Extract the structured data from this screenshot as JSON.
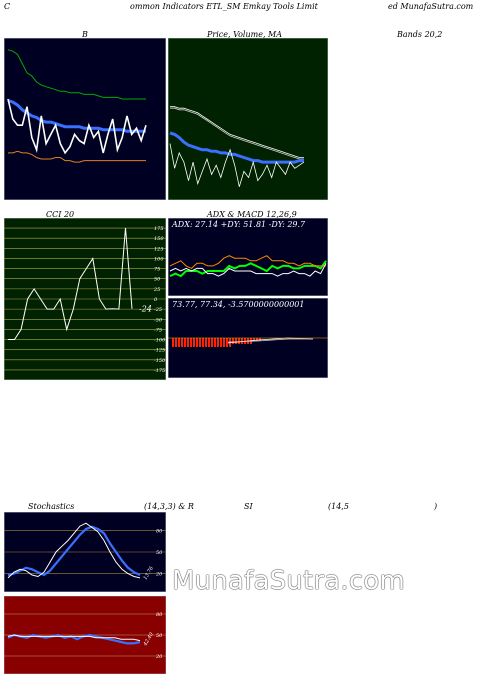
{
  "header": {
    "left": "C",
    "center": "ommon  Indicators ETL_SM Emkay Tools Limit",
    "right": "ed MunafaSutra.com"
  },
  "labels": {
    "b": "B",
    "price_ma": "Price,  Volume,  MA",
    "bands": "Bands 20,2",
    "cci": "CCI 20",
    "adx_macd": "ADX  & MACD 12,26,9",
    "stochastics": "Stochastics",
    "stoch_params": "(14,3,3) & R",
    "si": "SI",
    "rsi_params": "(14,5",
    "close_paren": ")"
  },
  "watermark": "MunafaSutra.com",
  "chart_data": [
    {
      "id": "bollinger",
      "type": "line",
      "series": [
        {
          "color": "#00aa00",
          "values": [
            95,
            94,
            92,
            86,
            80,
            78,
            74,
            72,
            71,
            70,
            69,
            68,
            68,
            67,
            67,
            67,
            66,
            66,
            66,
            65,
            64,
            64,
            64,
            64,
            63,
            63,
            63,
            63,
            63,
            63
          ]
        },
        {
          "color": "#3a70ff",
          "values": [
            62,
            61,
            59,
            56,
            54,
            52,
            51,
            49,
            48,
            48,
            47,
            46,
            45,
            45,
            45,
            45,
            44,
            44,
            44,
            44,
            43,
            43,
            43,
            43,
            43,
            42,
            42,
            42,
            42,
            42
          ]
        },
        {
          "color": "#ffffff",
          "values": [
            63,
            50,
            46,
            46,
            58,
            38,
            30,
            52,
            34,
            40,
            46,
            34,
            28,
            32,
            40,
            36,
            34,
            46,
            38,
            42,
            28,
            40,
            50,
            30,
            38,
            52,
            40,
            44,
            36,
            46
          ]
        },
        {
          "color": "#e08020",
          "values": [
            28,
            28,
            29,
            28,
            28,
            27,
            25,
            24,
            24,
            24,
            25,
            25,
            23,
            23,
            22,
            22,
            23,
            23,
            23,
            23,
            23,
            23,
            23,
            23,
            23,
            23,
            23,
            23,
            23,
            23
          ]
        }
      ]
    },
    {
      "id": "price_volume_ma",
      "type": "line",
      "series": [
        {
          "color": "#ffffff",
          "values": [
            58,
            58,
            57,
            57,
            56,
            55,
            54,
            52,
            50,
            48,
            46,
            44,
            42,
            40,
            39,
            38,
            37,
            36,
            35,
            34,
            33,
            32,
            31,
            30,
            29,
            28,
            27,
            26,
            25,
            25
          ]
        },
        {
          "color": "#cccccc",
          "values": [
            57,
            57,
            56,
            56,
            55,
            54,
            53,
            51,
            49,
            47,
            45,
            43,
            41,
            39,
            38,
            37,
            36,
            35,
            34,
            33,
            32,
            31,
            30,
            29,
            28,
            27,
            26,
            25,
            24,
            24
          ]
        },
        {
          "color": "#3a70ff",
          "values": [
            41,
            40,
            38,
            35,
            33,
            32,
            31,
            30,
            30,
            29,
            29,
            28,
            28,
            27,
            27,
            26,
            25,
            24,
            23,
            23,
            22,
            22,
            22,
            22,
            22,
            22,
            22,
            22,
            23,
            23
          ]
        },
        {
          "color": "#ffffff",
          "values": [
            34,
            18,
            28,
            22,
            10,
            22,
            8,
            16,
            24,
            14,
            20,
            12,
            22,
            30,
            20,
            6,
            16,
            12,
            22,
            10,
            14,
            20,
            12,
            22,
            18,
            14,
            22,
            18,
            20,
            22
          ]
        }
      ]
    },
    {
      "id": "cci",
      "type": "line",
      "axis_ticks": [
        175,
        150,
        125,
        100,
        75,
        50,
        25,
        0,
        -25,
        -50,
        -75,
        -100,
        -125,
        -150,
        -175
      ],
      "value_label": "-24",
      "series": [
        {
          "color": "#ffffff",
          "values": [
            -100,
            -100,
            -75,
            0,
            25,
            0,
            -25,
            -25,
            0,
            -75,
            -25,
            50,
            75,
            100,
            0,
            -25,
            -24,
            -25,
            175,
            -24
          ]
        }
      ]
    },
    {
      "id": "adx",
      "type": "line",
      "text": "ADX: 27.14  +DY: 51.81 -DY: 29.7",
      "series": [
        {
          "color": "#00ff00",
          "values": [
            25,
            26,
            25,
            27,
            27,
            27,
            26,
            27,
            27,
            27,
            27,
            29,
            28,
            29,
            29,
            30,
            29,
            28,
            27,
            29,
            28,
            29,
            29,
            28,
            28,
            29,
            29,
            29,
            28,
            31
          ]
        },
        {
          "color": "#ff8800",
          "values": [
            29,
            30,
            31,
            29,
            28,
            30,
            30,
            29,
            29,
            30,
            32,
            33,
            32,
            32,
            32,
            31,
            31,
            32,
            33,
            31,
            31,
            31,
            30,
            30,
            29,
            30,
            30,
            29,
            29,
            29
          ]
        },
        {
          "color": "#ffffff",
          "values": [
            27,
            28,
            27,
            28,
            27,
            28,
            28,
            26,
            26,
            25,
            26,
            28,
            27,
            27,
            27,
            27,
            26,
            26,
            26,
            26,
            25,
            26,
            26,
            27,
            26,
            26,
            25,
            27,
            26,
            30
          ]
        }
      ]
    },
    {
      "id": "macd",
      "type": "bar",
      "text": "73.77,  77.34,  -3.5700000000001",
      "values": [
        -3,
        -3,
        -3,
        -3,
        -3,
        -3,
        -3,
        -3,
        -3,
        -3,
        -3,
        -3,
        -3,
        -3,
        -3,
        -3,
        -3,
        -3,
        -3,
        -3,
        -2,
        -2,
        -2,
        -2,
        -2,
        -2,
        -2,
        -1,
        -1,
        -1
      ]
    },
    {
      "id": "stochastics",
      "type": "line",
      "axis_ticks": [
        80,
        50,
        20
      ],
      "value_label": "13.76",
      "series": [
        {
          "color": "#3a70ff",
          "values": [
            18,
            20,
            24,
            28,
            26,
            22,
            18,
            24,
            34,
            44,
            54,
            64,
            74,
            82,
            85,
            82,
            76,
            62,
            50,
            38,
            28,
            22,
            18
          ]
        },
        {
          "color": "#ffffff",
          "values": [
            14,
            22,
            26,
            24,
            18,
            16,
            22,
            36,
            50,
            58,
            66,
            76,
            86,
            90,
            84,
            78,
            66,
            50,
            36,
            26,
            20,
            16,
            14
          ]
        }
      ]
    },
    {
      "id": "rsi",
      "type": "line",
      "axis_ticks": [
        80,
        50,
        20
      ],
      "value_label": "42.40",
      "series": [
        {
          "color": "#3a70ff",
          "values": [
            46,
            50,
            48,
            46,
            50,
            48,
            46,
            48,
            50,
            46,
            48,
            44,
            48,
            50,
            48,
            46,
            44,
            42,
            40,
            38,
            38,
            40
          ]
        },
        {
          "color": "#ffffff",
          "values": [
            48,
            50,
            48,
            48,
            48,
            48,
            48,
            48,
            48,
            48,
            48,
            48,
            48,
            48,
            46,
            46,
            46,
            46,
            44,
            44,
            44,
            42
          ]
        }
      ]
    }
  ]
}
